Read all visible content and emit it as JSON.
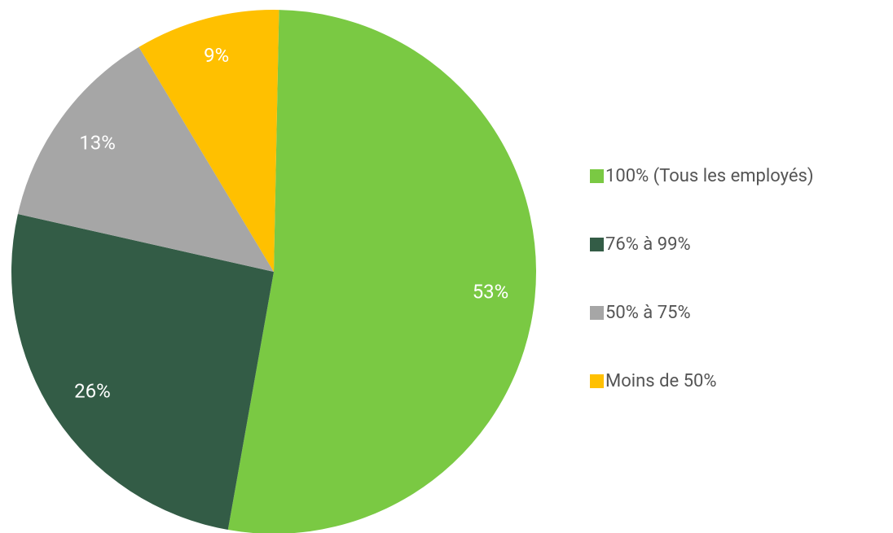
{
  "chart_data": {
    "type": "pie",
    "categories": [
      "100% (Tous les employés)",
      "76% à 99%",
      "50% à 75%",
      "Moins de 50%"
    ],
    "values": [
      53,
      26,
      13,
      9
    ],
    "value_labels": [
      "53%",
      "26%",
      "13%",
      "9%"
    ],
    "colors": [
      "#7ac943",
      "#335c46",
      "#a6a6a6",
      "#ffc000"
    ],
    "legend": "right"
  }
}
